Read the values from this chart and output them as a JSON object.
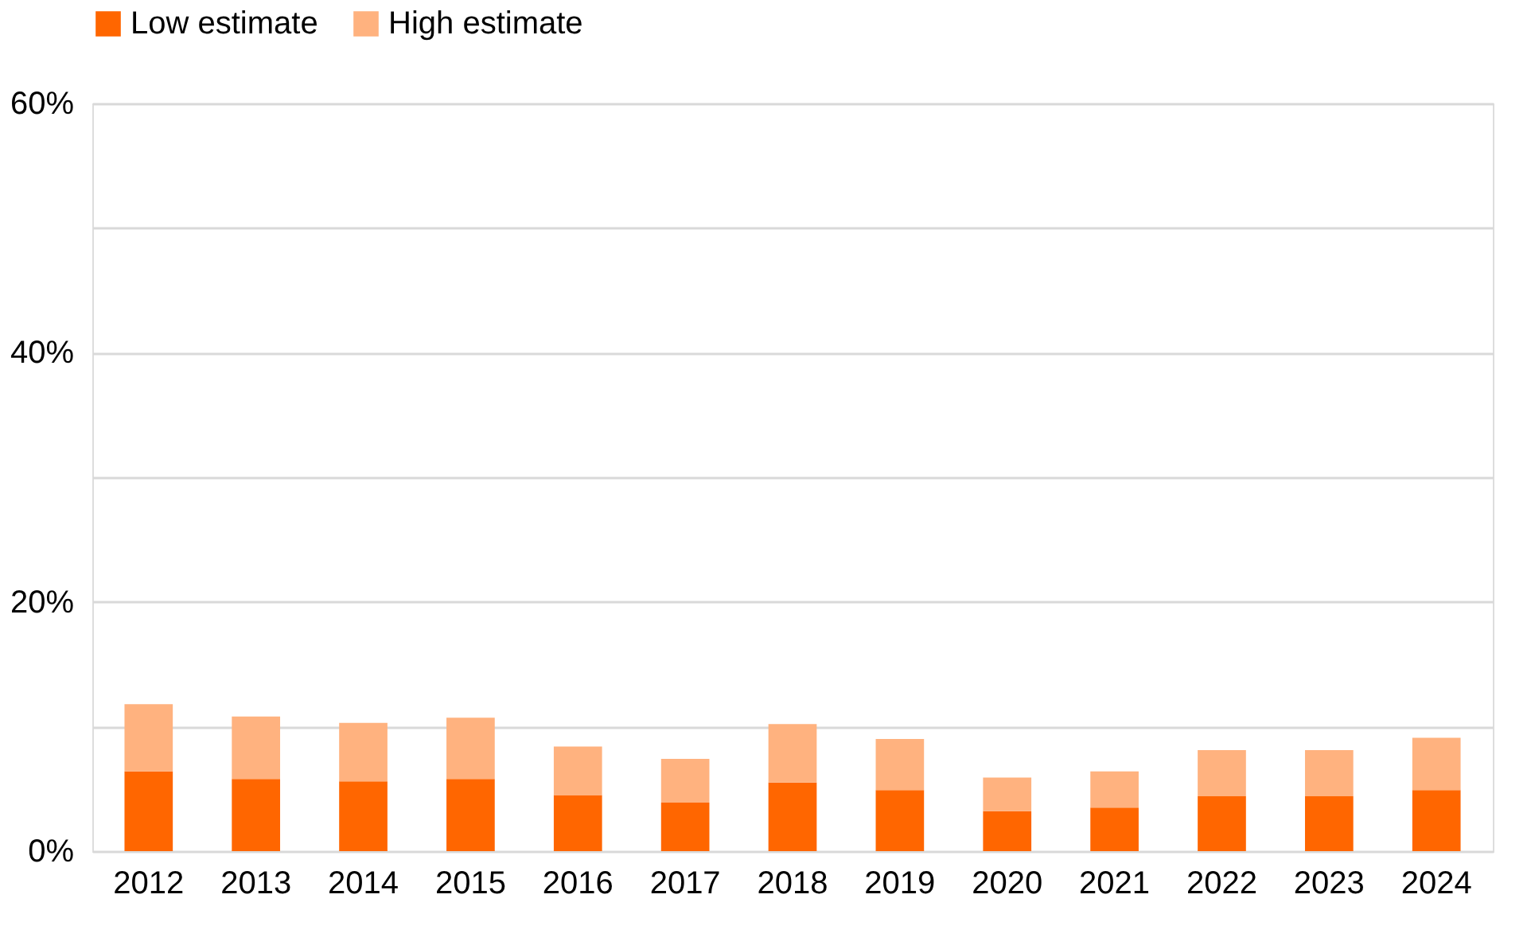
{
  "chart_data": {
    "type": "bar",
    "stacked": true,
    "categories": [
      "2012",
      "2013",
      "2014",
      "2015",
      "2016",
      "2017",
      "2018",
      "2019",
      "2020",
      "2021",
      "2022",
      "2023",
      "2024"
    ],
    "series": [
      {
        "name": "Low estimate",
        "color": "#ff6600",
        "values": [
          6.4,
          5.8,
          5.6,
          5.8,
          4.5,
          3.9,
          5.5,
          4.9,
          3.2,
          3.5,
          4.4,
          4.4,
          4.9
        ]
      },
      {
        "name": "High estimate",
        "color": "#ffb27f",
        "values": [
          5.4,
          5.0,
          4.7,
          4.9,
          3.9,
          3.5,
          4.7,
          4.1,
          2.7,
          2.9,
          3.7,
          3.7,
          4.2
        ]
      }
    ],
    "ylim": [
      0,
      60
    ],
    "yticks": [
      {
        "value": 0,
        "label": "0%"
      },
      {
        "value": 10,
        "label": null
      },
      {
        "value": 20,
        "label": "20%"
      },
      {
        "value": 30,
        "label": null
      },
      {
        "value": 40,
        "label": "40%"
      },
      {
        "value": 50,
        "label": null
      },
      {
        "value": 60,
        "label": "60%"
      }
    ],
    "grid": "y",
    "legend": "top"
  }
}
